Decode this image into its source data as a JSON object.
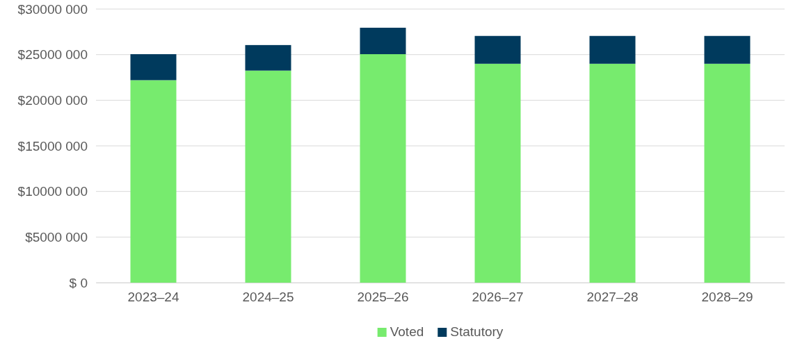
{
  "chart_data": {
    "type": "bar",
    "stacked": true,
    "categories": [
      "2023–24",
      "2024–25",
      "2025–26",
      "2026–27",
      "2027–28",
      "2028–29"
    ],
    "series": [
      {
        "name": "Voted",
        "color": "#77eb6e",
        "values": [
          22200000,
          23250000,
          25050000,
          24000000,
          24000000,
          24000000
        ]
      },
      {
        "name": "Statutory",
        "color": "#003a5d",
        "values": [
          2850000,
          2800000,
          2900000,
          3050000,
          3050000,
          3050000
        ]
      }
    ],
    "ylim": [
      0,
      30000000
    ],
    "yticks": [
      {
        "value": 0,
        "label": "$ 0"
      },
      {
        "value": 5000000,
        "label": "$5000 000"
      },
      {
        "value": 10000000,
        "label": "$10000 000"
      },
      {
        "value": 15000000,
        "label": "$15000 000"
      },
      {
        "value": 20000000,
        "label": "$20000 000"
      },
      {
        "value": 25000000,
        "label": "$25000 000"
      },
      {
        "value": 30000000,
        "label": "$30000 000"
      }
    ],
    "grid": "y",
    "legend": "bottom"
  }
}
